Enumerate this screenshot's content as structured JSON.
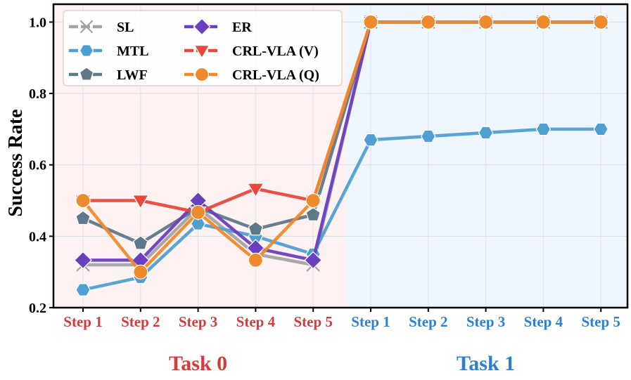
{
  "chart_data": {
    "type": "line",
    "title": "",
    "ylabel": "Success Rate",
    "xlabel": "",
    "ylim": [
      0.2,
      1.05
    ],
    "yticks": [
      "0.2",
      "0.4",
      "0.6",
      "0.8",
      "1.0"
    ],
    "grid": true,
    "legend_position": "top-left",
    "categories": [
      "Step 1",
      "Step 2",
      "Step 3",
      "Step 4",
      "Step 5",
      "Step 1",
      "Step 2",
      "Step 3",
      "Step 4",
      "Step 5"
    ],
    "tasks": [
      {
        "label": "Task 0",
        "steps": 5,
        "color": "#d33a3a",
        "bg": "#fdf1f1"
      },
      {
        "label": "Task 1",
        "steps": 5,
        "color": "#2f7fcf",
        "bg": "#eef5fc"
      }
    ],
    "series": [
      {
        "name": "SL",
        "color": "#a3a3a3",
        "marker": "x",
        "values": [
          0.32,
          0.32,
          0.48,
          0.35,
          0.32,
          1.0,
          1.0,
          1.0,
          1.0,
          1.0
        ]
      },
      {
        "name": "MTL",
        "color": "#4f9fd0",
        "marker": "hexagon",
        "values": [
          0.25,
          0.285,
          0.435,
          0.4,
          0.35,
          0.67,
          0.68,
          0.69,
          0.7,
          0.7
        ]
      },
      {
        "name": "LWF",
        "color": "#5f7888",
        "marker": "pentagon",
        "values": [
          0.45,
          0.38,
          0.48,
          0.42,
          0.46,
          1.0,
          1.0,
          1.0,
          1.0,
          1.0
        ]
      },
      {
        "name": "ER",
        "color": "#6a3fbf",
        "marker": "diamond",
        "values": [
          0.333,
          0.333,
          0.5,
          0.367,
          0.333,
          1.0,
          1.0,
          1.0,
          1.0,
          1.0
        ]
      },
      {
        "name": "CRL-VLA (V)",
        "color": "#e8473c",
        "marker": "triangle-down",
        "values": [
          0.5,
          0.5,
          0.467,
          0.533,
          0.5,
          1.0,
          1.0,
          1.0,
          1.0,
          1.0
        ]
      },
      {
        "name": "CRL-VLA (Q)",
        "color": "#ee8a2c",
        "marker": "circle",
        "values": [
          0.5,
          0.3,
          0.467,
          0.333,
          0.5,
          1.0,
          1.0,
          1.0,
          1.0,
          1.0
        ]
      }
    ]
  }
}
